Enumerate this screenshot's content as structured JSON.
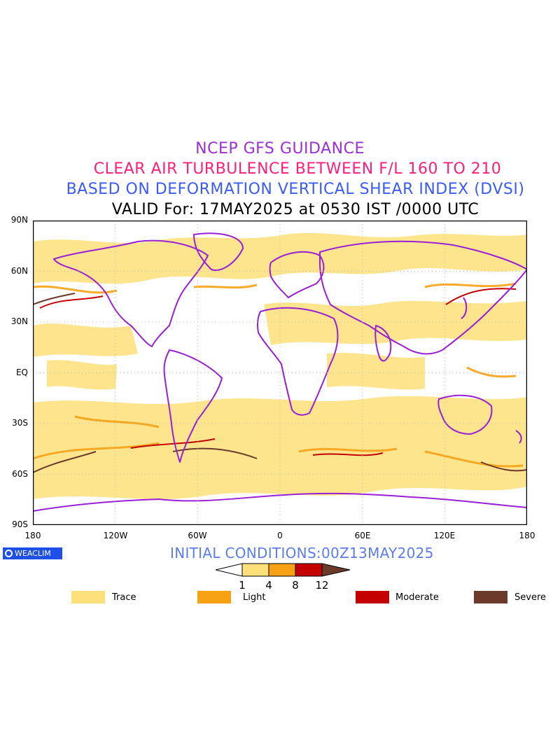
{
  "titles": {
    "line1": "NCEP GFS GUIDANCE",
    "line2": "CLEAR AIR TURBULENCE BETWEEN F/L 160 TO 210",
    "line3": "BASED ON DEFORMATION VERTICAL SHEAR INDEX (DVSI)",
    "line4": "VALID For: 17MAY2025 at 0530 IST /0000 UTC"
  },
  "lat_labels": [
    "90N",
    "60N",
    "30N",
    "EQ",
    "30S",
    "60S",
    "90S"
  ],
  "lon_labels": [
    "180",
    "120W",
    "60W",
    "0",
    "60E",
    "120E",
    "180"
  ],
  "logo": {
    "text": "WEACLIM",
    "icon": "globe-ring-icon"
  },
  "initial_conditions": "INITIAL CONDITIONS:00Z13MAY2025",
  "colorbar": {
    "ticks": [
      "1",
      "4",
      "8",
      "12"
    ],
    "colors": [
      "#ffffff",
      "#fde07a",
      "#f7a114",
      "#c40000",
      "#6b3a2a"
    ]
  },
  "legend": [
    {
      "label": "Trace",
      "color": "#fde07a"
    },
    {
      "label": "Light",
      "color": "#f7a114"
    },
    {
      "label": "Moderate",
      "color": "#c40000"
    },
    {
      "label": "Severe",
      "color": "#6b3a2a"
    }
  ],
  "colors": {
    "coastline": "#9b1fd6",
    "grid": "#bbbbbb"
  }
}
